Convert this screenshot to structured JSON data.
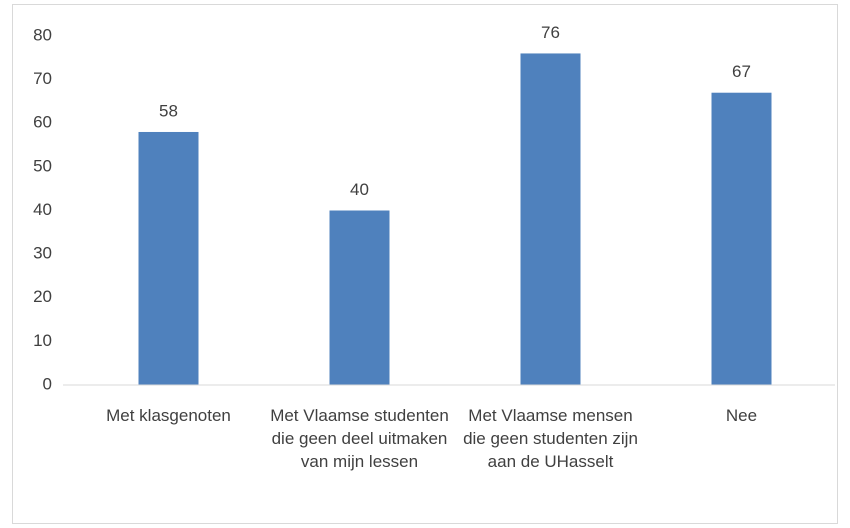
{
  "chart_data": {
    "type": "bar",
    "categories": [
      "Met klasgenoten",
      "Met Vlaamse studenten die geen deel uitmaken van mijn lessen",
      "Met Vlaamse mensen die geen studenten zijn aan de UHasselt",
      "Nee"
    ],
    "values": [
      58,
      40,
      76,
      67
    ],
    "color": "#4f81bd",
    "ylim": [
      0,
      80
    ],
    "yticks": [
      0,
      10,
      20,
      30,
      40,
      50,
      60,
      70,
      80
    ],
    "grid": false
  }
}
